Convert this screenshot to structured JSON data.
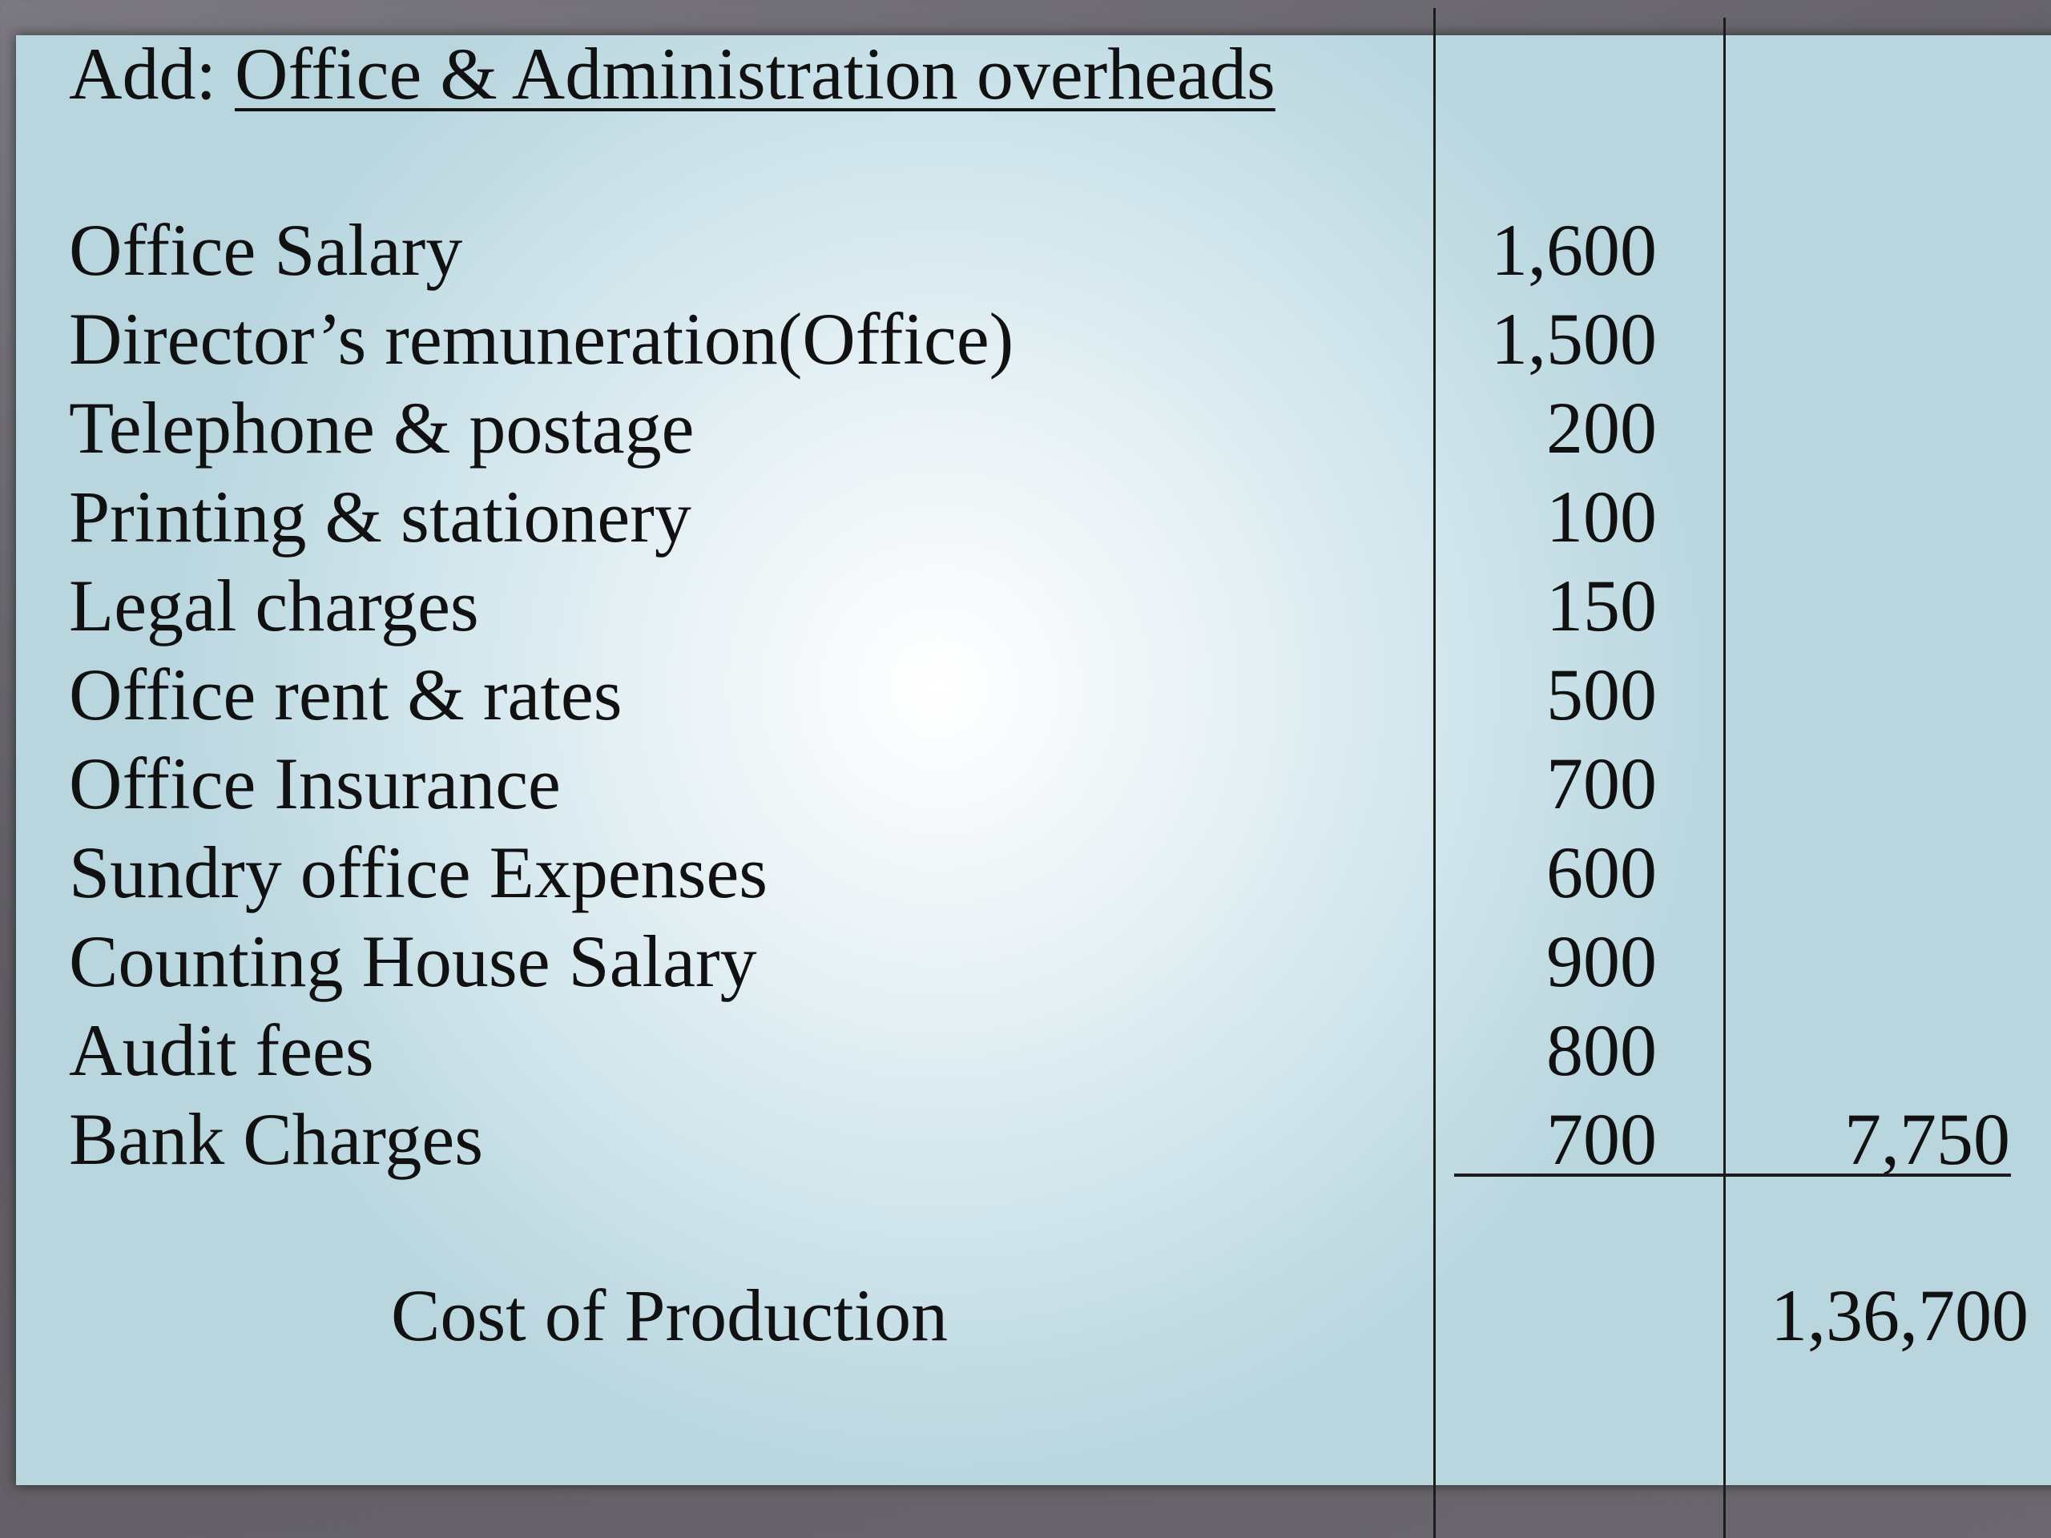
{
  "heading": {
    "prefix": "Add:",
    "title": "Office & Administration overheads"
  },
  "rows": [
    {
      "label": "Office Salary",
      "amount": "1,600"
    },
    {
      "label": "Director’s remuneration(Office)",
      "amount": "1,500"
    },
    {
      "label": "Telephone & postage",
      "amount": "200"
    },
    {
      "label": "Printing & stationery",
      "amount": "100"
    },
    {
      "label": "Legal charges",
      "amount": "150"
    },
    {
      "label": "Office rent & rates",
      "amount": "500"
    },
    {
      "label": "Office Insurance",
      "amount": "700"
    },
    {
      "label": "Sundry office Expenses",
      "amount": "600"
    },
    {
      "label": "Counting House Salary",
      "amount": "900"
    },
    {
      "label": "Audit fees",
      "amount": "800"
    },
    {
      "label": "Bank Charges",
      "amount": "700"
    }
  ],
  "overheads_total": "7,750",
  "cost_of_production": {
    "label": "Cost of Production",
    "value": "1,36,700"
  }
}
